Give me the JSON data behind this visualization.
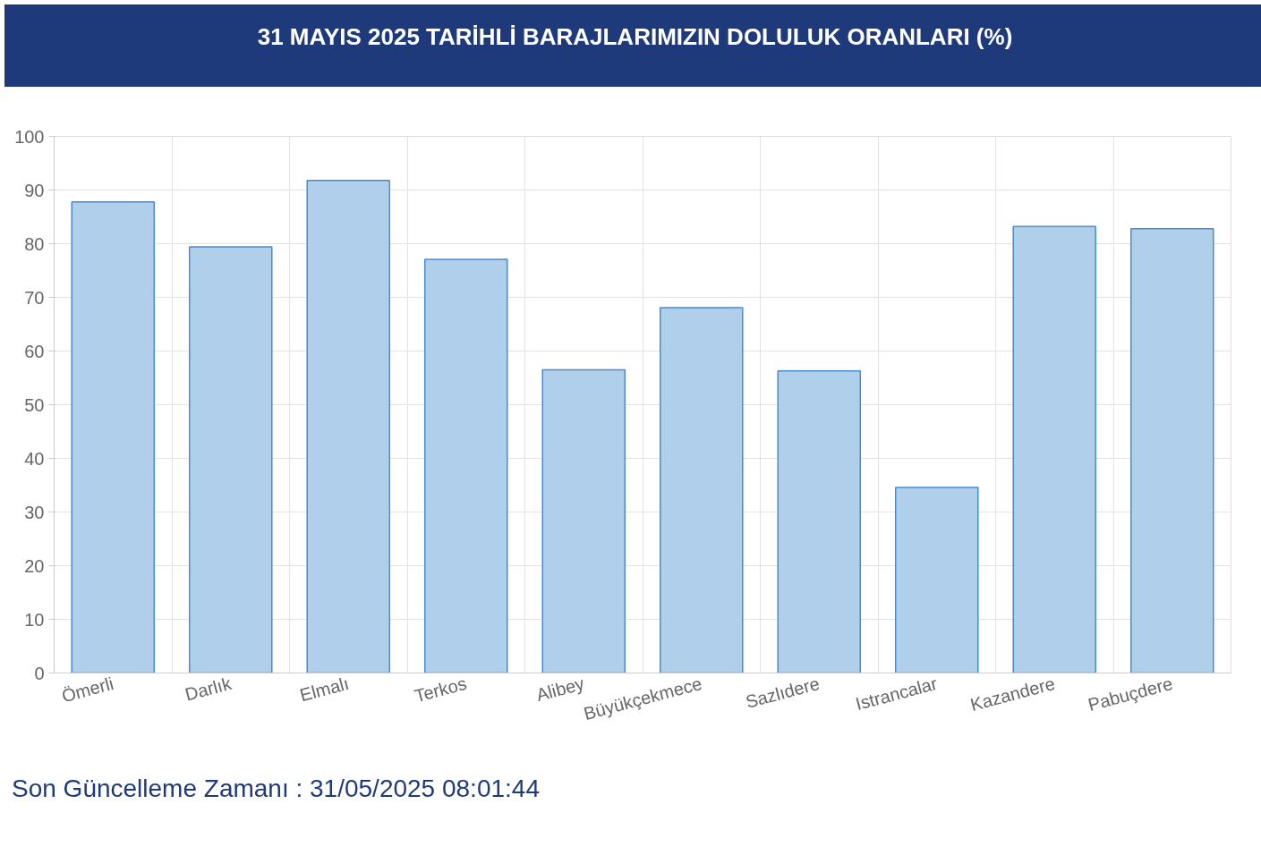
{
  "chart_data": {
    "type": "bar",
    "title": "31 MAYIS 2025 TARİHLİ BARAJLARIMIZIN DOLULUK ORANLARI (%)",
    "categories": [
      "Ömerli",
      "Darlık",
      "Elmalı",
      "Terkos",
      "Alibey",
      "Büyükçekmece",
      "Sazlıdere",
      "Istrancalar",
      "Kazandere",
      "Pabuçdere"
    ],
    "values": [
      87.8,
      79.4,
      91.8,
      77.1,
      56.5,
      68.1,
      56.3,
      34.6,
      83.2,
      82.8
    ],
    "color": "#b0cfeb",
    "ylim": [
      0,
      100
    ],
    "yticks": [
      0,
      10,
      20,
      30,
      40,
      50,
      60,
      70,
      80,
      90,
      100
    ],
    "grid": true,
    "annotations": [
      "Son Güncelleme Zamanı : 31/05/2025 08:01:44"
    ]
  }
}
